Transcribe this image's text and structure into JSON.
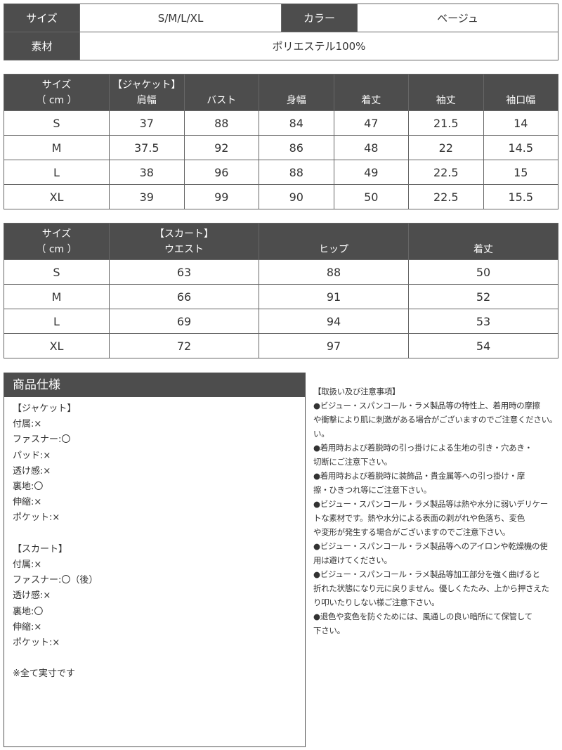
{
  "summary": {
    "size_label": "サイズ",
    "size_value": "S/M/L/XL",
    "color_label": "カラー",
    "color_value": "ベージュ",
    "material_label": "素材",
    "material_value": "ポリエステル100%"
  },
  "jacket": {
    "size_label": "サイズ",
    "unit": "（ cm ）",
    "group": "【ジャケット】",
    "columns": [
      "肩幅",
      "バスト",
      "身幅",
      "着丈",
      "袖丈",
      "袖口幅"
    ],
    "rows": [
      [
        "S",
        "37",
        "88",
        "84",
        "47",
        "21.5",
        "14"
      ],
      [
        "M",
        "37.5",
        "92",
        "86",
        "48",
        "22",
        "14.5"
      ],
      [
        "L",
        "38",
        "96",
        "88",
        "49",
        "22.5",
        "15"
      ],
      [
        "XL",
        "39",
        "99",
        "90",
        "50",
        "22.5",
        "15.5"
      ]
    ]
  },
  "skirt": {
    "size_label": "サイズ",
    "unit": "（ cm ）",
    "group": "【スカート】",
    "columns": [
      "ウエスト",
      "ヒップ",
      "着丈"
    ],
    "rows": [
      [
        "S",
        "63",
        "88",
        "50"
      ],
      [
        "M",
        "66",
        "91",
        "52"
      ],
      [
        "L",
        "69",
        "94",
        "53"
      ],
      [
        "XL",
        "72",
        "97",
        "54"
      ]
    ]
  },
  "spec": {
    "title": "商品仕様",
    "lines": [
      "【ジャケット】",
      "付属:×",
      "ファスナー:〇",
      "パッド:×",
      "透け感:×",
      "裏地:〇",
      "伸縮:×",
      "ポケット:×",
      "",
      "【スカート】",
      "付属:×",
      "ファスナー:〇（後）",
      "透け感:×",
      "裏地:〇",
      "伸縮:×",
      "ポケット:×",
      "",
      "※全て実寸です"
    ]
  },
  "notes": {
    "lines": [
      "【取扱い及び注意事項】",
      "●ビジュー・スパンコール・ラメ製品等の特性上、着用時の摩擦",
      "や衝撃により肌に刺激がある場合がございますのでご注意ください。",
      "い。",
      "●着用時および着脱時の引っ掛けによる生地の引き・穴あき・",
      "切断にご注意下さい。",
      "●着用時および着脱時に装飾品・貴金属等への引っ掛け・摩",
      "擦・ひきつれ等にご注意下さい。",
      "●ビジュー・スパンコール・ラメ製品等は熱や水分に弱いデリケー",
      "トな素材です。熱や水分による表面の剥がれや色落ち、変色",
      "や変形が発生する場合がございますのでご注意下さい。",
      "●ビジュー・スパンコール・ラメ製品等へのアイロンや乾燥機の使",
      "用は避けてください。",
      "●ビジュー・スパンコール・ラメ製品等加工部分を強く曲げると",
      "折れた状態になり元に戻りません。優しくたたみ、上から押さえた",
      "り叩いたりしない様ご注意下さい。",
      "●退色や変色を防ぐためには、風通しの良い暗所にて保管して",
      "下さい。"
    ]
  }
}
